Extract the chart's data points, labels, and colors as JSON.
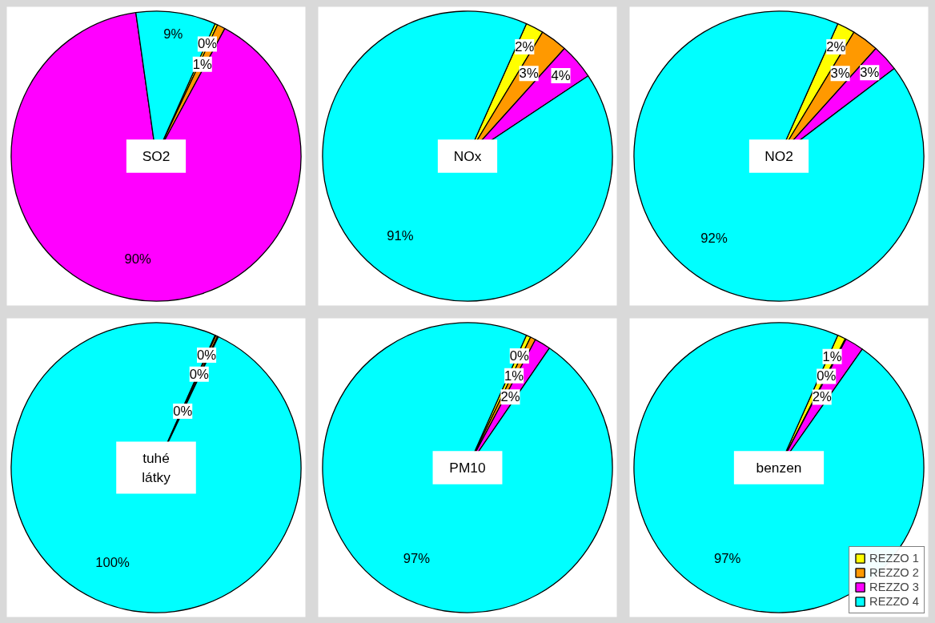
{
  "chart_data": [
    {
      "type": "pie",
      "title": "SO2",
      "values": [
        0.3,
        0.9,
        89.9,
        8.9
      ],
      "value_labels": [
        "0%",
        "1%",
        "90%",
        "9%"
      ],
      "colors": [
        "#ffff00",
        "#ff9900",
        "#ff00ff",
        "#00ffff"
      ]
    },
    {
      "type": "pie",
      "title": "NOx",
      "values": [
        2,
        3,
        4,
        91
      ],
      "value_labels": [
        "2%",
        "3%",
        "4%",
        "91%"
      ],
      "colors": [
        "#ffff00",
        "#ff9900",
        "#ff00ff",
        "#00ffff"
      ]
    },
    {
      "type": "pie",
      "title": "NO2",
      "values": [
        2,
        3,
        3,
        92
      ],
      "value_labels": [
        "2%",
        "3%",
        "3%",
        "92%"
      ],
      "colors": [
        "#ffff00",
        "#ff9900",
        "#ff00ff",
        "#00ffff"
      ]
    },
    {
      "type": "pie",
      "title": "tuhé látky",
      "values": [
        0.1,
        0.2,
        0.1,
        99.6
      ],
      "value_labels": [
        "0%",
        "0%",
        "0%",
        "100%"
      ],
      "colors": [
        "#ffff00",
        "#ff9900",
        "#ff00ff",
        "#00ffff"
      ]
    },
    {
      "type": "pie",
      "title": "PM10",
      "values": [
        0.5,
        0.6,
        1.8,
        97.1
      ],
      "value_labels": [
        "0%",
        "1%",
        "2%",
        "97%"
      ],
      "colors": [
        "#ffff00",
        "#ff9900",
        "#ff00ff",
        "#00ffff"
      ]
    },
    {
      "type": "pie",
      "title": "benzen",
      "categories": [
        "REZZO 1",
        "REZZO 2",
        "REZZO 3",
        "REZZO 4"
      ],
      "values": [
        0.9,
        0.1,
        2.1,
        96.9
      ],
      "value_labels": [
        "1%",
        "0%",
        "2%",
        "97%"
      ],
      "colors": [
        "#ffff00",
        "#ff9900",
        "#ff00ff",
        "#00ffff"
      ],
      "legend": "bottom right"
    }
  ]
}
